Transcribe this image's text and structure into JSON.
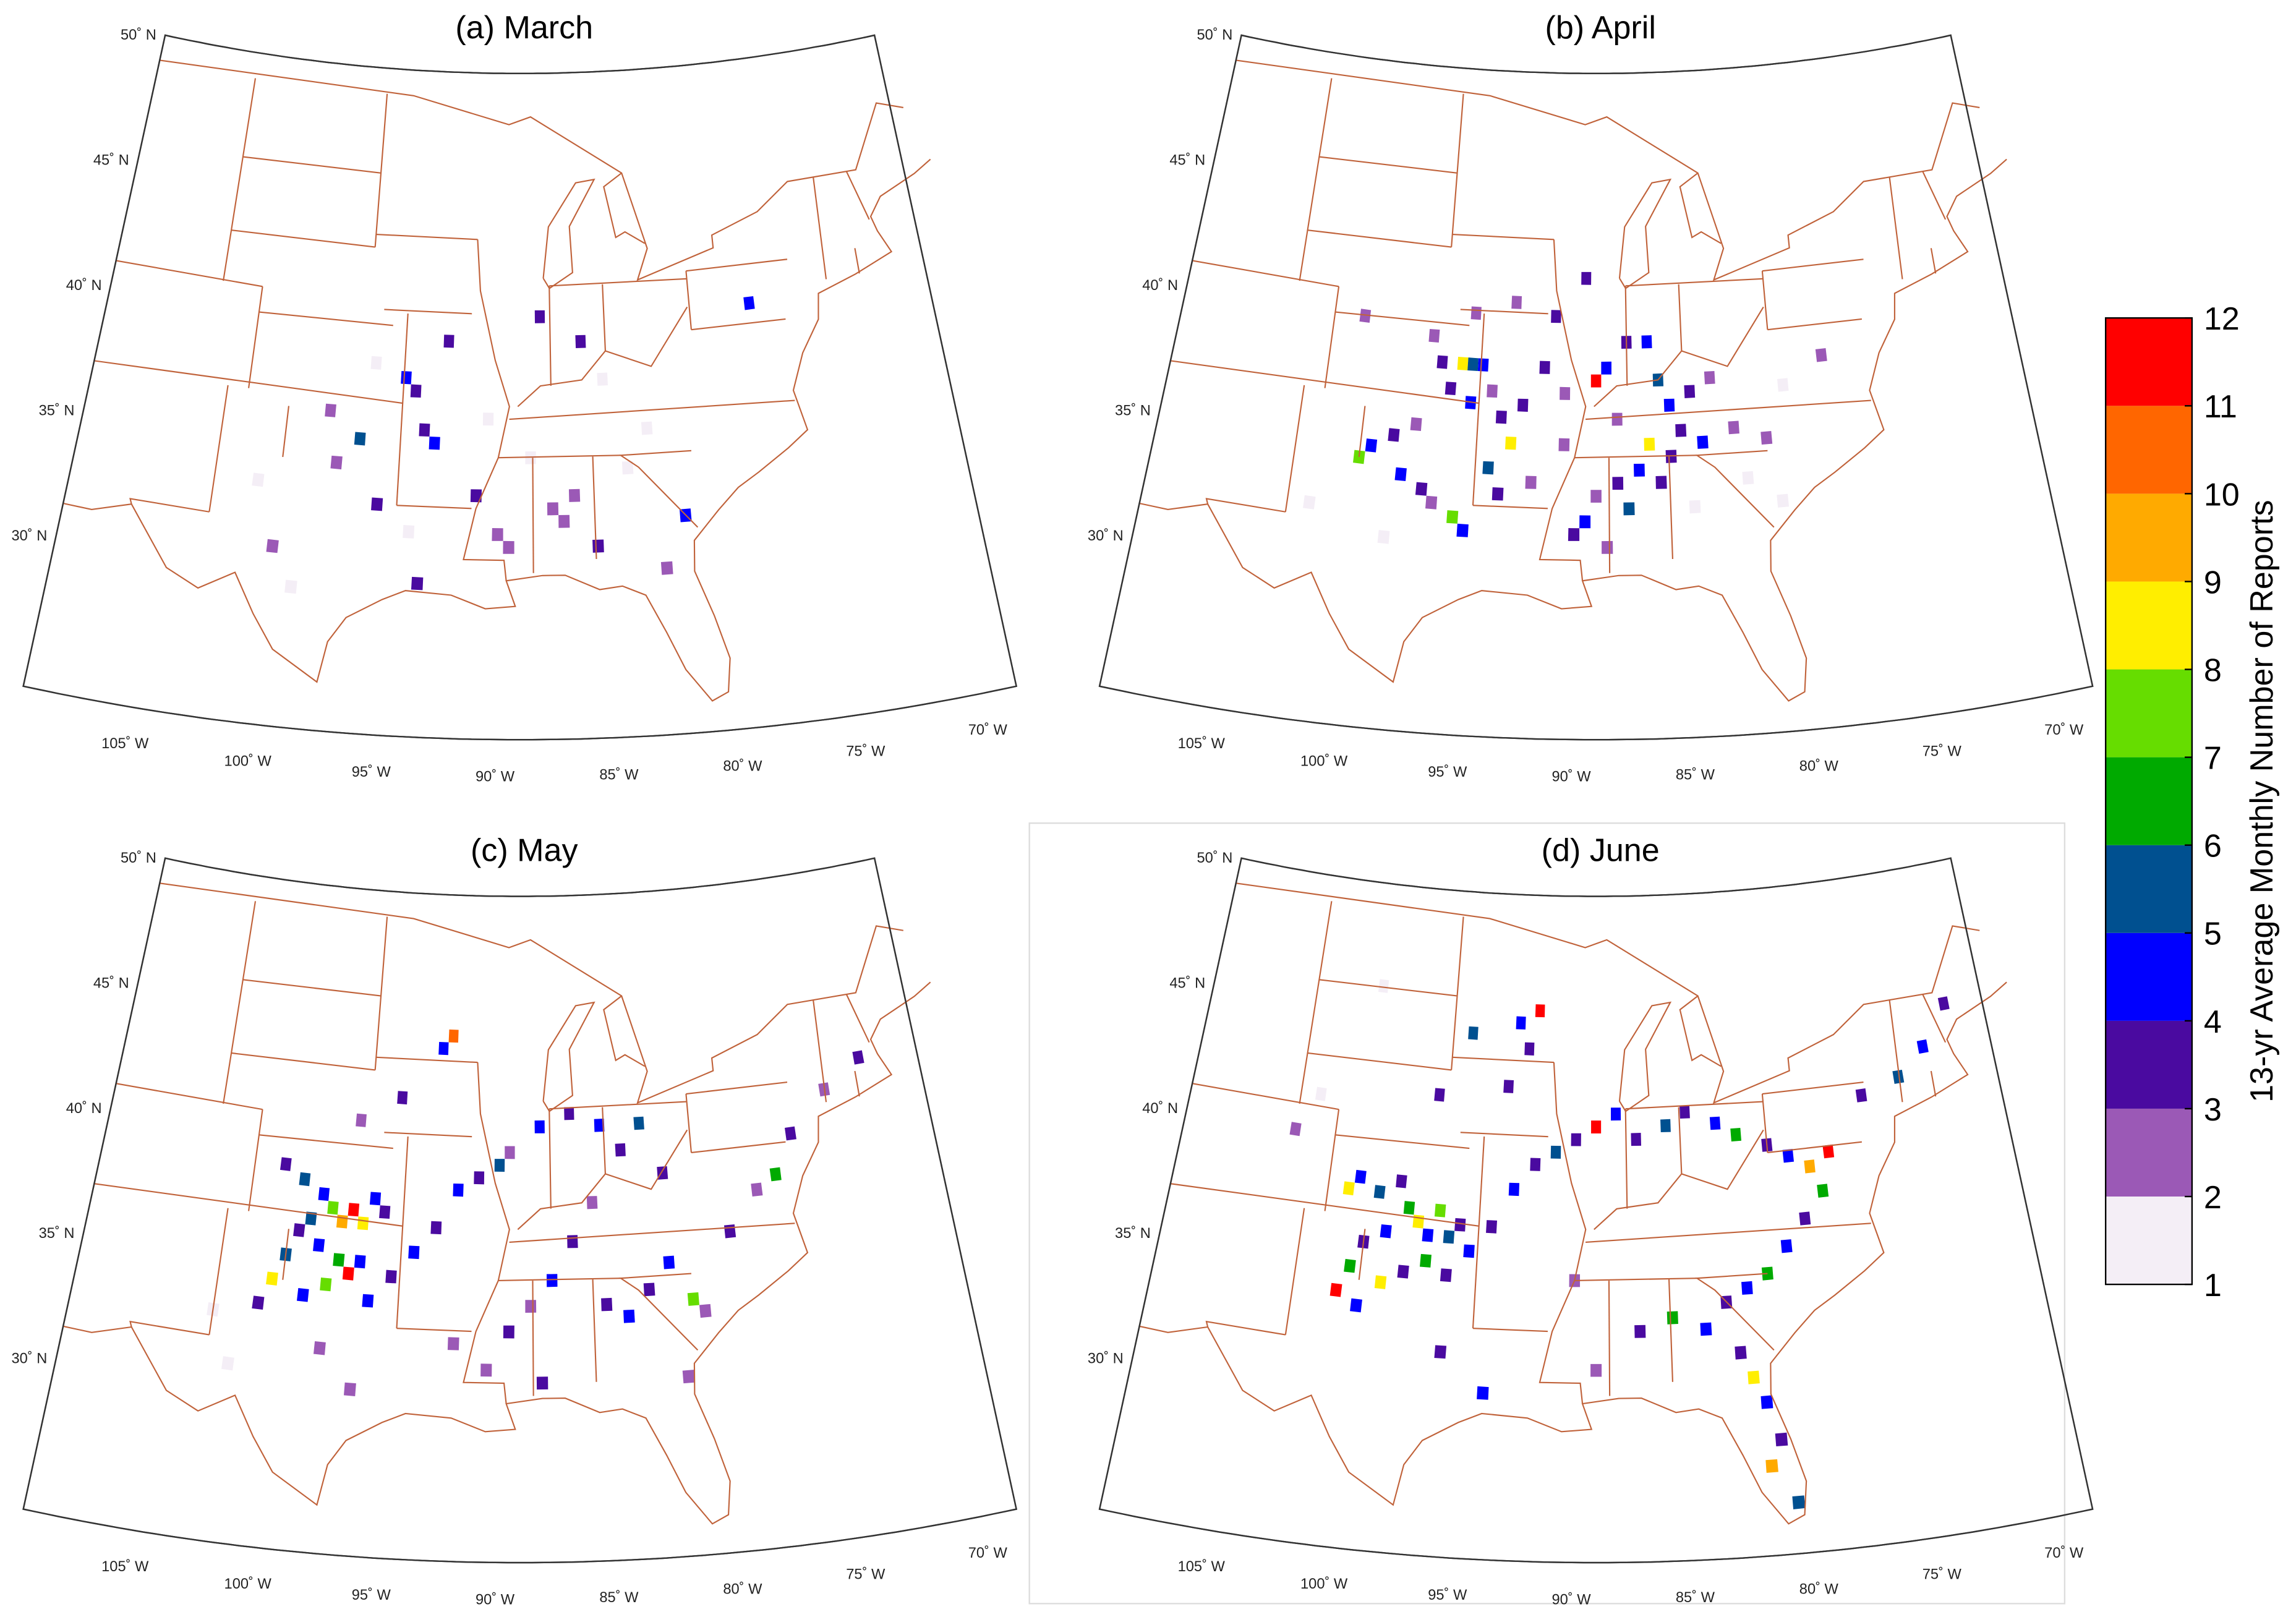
{
  "panels": [
    {
      "title": "(a) March",
      "cells": [
        [
          -94.5,
          38.0,
          4.5
        ],
        [
          -94.0,
          37.5,
          3.5
        ],
        [
          -93.5,
          36.0,
          3.5
        ],
        [
          -96.5,
          35.5,
          5.5
        ],
        [
          -93.0,
          35.5,
          4.5
        ],
        [
          -92.5,
          39.5,
          3.5
        ],
        [
          -88.0,
          40.5,
          3.5
        ],
        [
          -86.0,
          39.5,
          3.5
        ],
        [
          -77.5,
          40.5,
          4.5
        ],
        [
          -91.0,
          33.5,
          3.5
        ],
        [
          -90.0,
          32.0,
          2.5
        ],
        [
          -89.5,
          31.5,
          2.5
        ],
        [
          -87.5,
          33.0,
          2.5
        ],
        [
          -87.0,
          32.5,
          2.5
        ],
        [
          -86.5,
          33.5,
          2.5
        ],
        [
          -85.5,
          31.5,
          3.5
        ],
        [
          -81.5,
          32.5,
          4.5
        ],
        [
          -82.5,
          30.5,
          2.5
        ],
        [
          -98.0,
          36.5,
          2.5
        ],
        [
          -97.5,
          34.5,
          2.5
        ],
        [
          -95.5,
          33.0,
          3.5
        ],
        [
          -100.0,
          31.0,
          2.5
        ],
        [
          -93.5,
          30.0,
          3.5
        ],
        [
          -84.0,
          34.5,
          1.5
        ],
        [
          -90.5,
          36.5,
          1.5
        ],
        [
          -96.0,
          38.5,
          1.5
        ],
        [
          -101.0,
          33.5,
          1.5
        ],
        [
          -88.5,
          35.0,
          1.5
        ],
        [
          -83.0,
          36.0,
          1.5
        ],
        [
          -99.0,
          29.5,
          1.5
        ],
        [
          -85.0,
          38.0,
          1.5
        ],
        [
          -94.0,
          32.0,
          1.5
        ]
      ]
    },
    {
      "title": "(b) April",
      "cells": [
        [
          -96.5,
          38.5,
          3.5
        ],
        [
          -95.5,
          38.5,
          8.5
        ],
        [
          -95.0,
          38.5,
          5.5
        ],
        [
          -94.5,
          38.5,
          4.5
        ],
        [
          -96.0,
          37.5,
          3.5
        ],
        [
          -95.0,
          37.0,
          4.5
        ],
        [
          -94.0,
          37.5,
          2.5
        ],
        [
          -93.5,
          36.5,
          3.5
        ],
        [
          -97.5,
          36.0,
          2.5
        ],
        [
          -98.5,
          35.5,
          3.5
        ],
        [
          -99.5,
          35.0,
          4.5
        ],
        [
          -100.0,
          34.5,
          7.5
        ],
        [
          -98.0,
          34.0,
          4.5
        ],
        [
          -97.0,
          33.5,
          3.5
        ],
        [
          -96.5,
          33.0,
          2.5
        ],
        [
          -95.5,
          32.5,
          7.5
        ],
        [
          -95.0,
          32.0,
          4.5
        ],
        [
          -94.0,
          34.5,
          5.5
        ],
        [
          -93.0,
          35.5,
          8.5
        ],
        [
          -92.5,
          37.0,
          3.5
        ],
        [
          -91.5,
          38.5,
          3.5
        ],
        [
          -90.5,
          37.5,
          2.5
        ],
        [
          -89.0,
          38.0,
          11.5
        ],
        [
          -88.5,
          38.5,
          4.5
        ],
        [
          -87.5,
          39.5,
          3.5
        ],
        [
          -86.5,
          39.5,
          4.5
        ],
        [
          -86.0,
          38.0,
          5.5
        ],
        [
          -85.5,
          37.0,
          4.5
        ],
        [
          -84.5,
          37.5,
          3.5
        ],
        [
          -83.5,
          38.0,
          2.5
        ],
        [
          -85.0,
          36.0,
          3.5
        ],
        [
          -86.5,
          35.5,
          8.5
        ],
        [
          -87.0,
          34.5,
          4.5
        ],
        [
          -86.0,
          34.0,
          3.5
        ],
        [
          -88.0,
          34.0,
          3.5
        ],
        [
          -89.0,
          33.5,
          2.5
        ],
        [
          -89.5,
          32.5,
          4.5
        ],
        [
          -90.0,
          32.0,
          3.5
        ],
        [
          -88.5,
          31.5,
          2.5
        ],
        [
          -87.5,
          33.0,
          5.5
        ],
        [
          -85.5,
          35.0,
          3.5
        ],
        [
          -84.0,
          35.5,
          4.5
        ],
        [
          -82.5,
          36.0,
          2.5
        ],
        [
          -81.0,
          35.5,
          2.5
        ],
        [
          -80.0,
          37.5,
          1.5
        ],
        [
          -78.0,
          38.5,
          2.5
        ],
        [
          -80.5,
          33.0,
          1.5
        ],
        [
          -91.0,
          40.5,
          3.5
        ],
        [
          -89.5,
          42.0,
          3.5
        ],
        [
          -93.0,
          41.0,
          2.5
        ],
        [
          -95.0,
          40.5,
          2.5
        ],
        [
          -100.5,
          40.0,
          2.5
        ],
        [
          -97.0,
          39.5,
          2.5
        ],
        [
          -92.0,
          34.0,
          2.5
        ],
        [
          -90.5,
          35.5,
          2.5
        ],
        [
          -93.5,
          33.5,
          3.5
        ],
        [
          -102.0,
          32.5,
          1.5
        ],
        [
          -98.5,
          31.5,
          1.5
        ],
        [
          -88.0,
          36.5,
          2.5
        ],
        [
          -84.5,
          33.0,
          1.5
        ],
        [
          -82.0,
          34.0,
          1.5
        ]
      ]
    },
    {
      "title": "(c) May",
      "cells": [
        [
          -100.5,
          39.0,
          3.5
        ],
        [
          -99.5,
          38.5,
          5.5
        ],
        [
          -98.5,
          38.0,
          4.5
        ],
        [
          -98.0,
          37.5,
          7.5
        ],
        [
          -97.5,
          37.0,
          9.5
        ],
        [
          -97.0,
          37.5,
          11.5
        ],
        [
          -96.5,
          37.0,
          8.5
        ],
        [
          -96.0,
          38.0,
          4.5
        ],
        [
          -95.5,
          37.5,
          3.5
        ],
        [
          -99.0,
          37.0,
          5.5
        ],
        [
          -99.5,
          36.5,
          3.5
        ],
        [
          -98.5,
          36.0,
          4.5
        ],
        [
          -97.5,
          35.5,
          6.5
        ],
        [
          -97.0,
          35.0,
          11.5
        ],
        [
          -96.5,
          35.5,
          4.5
        ],
        [
          -98.0,
          34.5,
          7.5
        ],
        [
          -99.0,
          34.0,
          4.5
        ],
        [
          -100.0,
          35.5,
          5.5
        ],
        [
          -100.5,
          34.5,
          8.5
        ],
        [
          -101.0,
          33.5,
          3.5
        ],
        [
          -96.0,
          34.0,
          4.5
        ],
        [
          -95.0,
          35.0,
          3.5
        ],
        [
          -94.0,
          36.0,
          4.5
        ],
        [
          -93.0,
          37.0,
          3.5
        ],
        [
          -92.0,
          38.5,
          4.5
        ],
        [
          -91.0,
          39.0,
          3.5
        ],
        [
          -90.0,
          39.5,
          5.5
        ],
        [
          -89.5,
          40.0,
          2.5
        ],
        [
          -88.0,
          41.0,
          4.5
        ],
        [
          -86.5,
          41.5,
          3.5
        ],
        [
          -85.0,
          41.0,
          4.5
        ],
        [
          -84.0,
          40.0,
          3.5
        ],
        [
          -83.0,
          41.0,
          5.5
        ],
        [
          -82.0,
          39.0,
          3.5
        ],
        [
          -85.5,
          38.0,
          2.5
        ],
        [
          -86.5,
          36.5,
          3.5
        ],
        [
          -87.5,
          35.0,
          4.5
        ],
        [
          -88.5,
          34.0,
          2.5
        ],
        [
          -89.5,
          33.0,
          3.5
        ],
        [
          -90.5,
          31.5,
          2.5
        ],
        [
          -85.0,
          34.0,
          3.5
        ],
        [
          -84.0,
          33.5,
          4.5
        ],
        [
          -83.0,
          34.5,
          3.5
        ],
        [
          -82.0,
          35.5,
          4.5
        ],
        [
          -81.0,
          34.0,
          7.5
        ],
        [
          -80.5,
          33.5,
          2.5
        ],
        [
          -79.0,
          36.5,
          3.5
        ],
        [
          -77.5,
          38.0,
          2.5
        ],
        [
          -76.5,
          38.5,
          6.5
        ],
        [
          -75.5,
          40.0,
          3.5
        ],
        [
          -73.5,
          41.5,
          2.5
        ],
        [
          -71.5,
          42.5,
          3.5
        ],
        [
          -92.5,
          44.5,
          10.5
        ],
        [
          -93.0,
          44.0,
          4.5
        ],
        [
          -95.0,
          42.0,
          3.5
        ],
        [
          -97.0,
          41.0,
          2.5
        ],
        [
          -98.0,
          32.0,
          2.5
        ],
        [
          -102.0,
          31.0,
          1.5
        ],
        [
          -103.0,
          33.0,
          1.5
        ],
        [
          -96.5,
          30.5,
          2.5
        ],
        [
          -92.0,
          32.5,
          2.5
        ],
        [
          -88.0,
          31.0,
          3.5
        ],
        [
          -81.5,
          31.0,
          2.5
        ]
      ]
    },
    {
      "title": "(d) June",
      "cells": [
        [
          -101.0,
          38.0,
          8.5
        ],
        [
          -100.5,
          38.5,
          4.5
        ],
        [
          -99.5,
          38.0,
          5.5
        ],
        [
          -98.5,
          38.5,
          3.5
        ],
        [
          -98.0,
          37.5,
          6.5
        ],
        [
          -97.5,
          37.0,
          8.5
        ],
        [
          -97.0,
          36.5,
          4.5
        ],
        [
          -96.5,
          37.5,
          7.5
        ],
        [
          -96.0,
          36.5,
          5.5
        ],
        [
          -95.5,
          37.0,
          3.5
        ],
        [
          -99.0,
          36.5,
          4.5
        ],
        [
          -100.0,
          36.0,
          3.5
        ],
        [
          -100.5,
          35.0,
          6.5
        ],
        [
          -101.0,
          34.0,
          11.5
        ],
        [
          -100.0,
          33.5,
          4.5
        ],
        [
          -99.0,
          34.5,
          8.5
        ],
        [
          -98.0,
          35.0,
          3.5
        ],
        [
          -97.0,
          35.5,
          6.5
        ],
        [
          -96.0,
          35.0,
          3.5
        ],
        [
          -95.0,
          36.0,
          4.5
        ],
        [
          -94.0,
          37.0,
          3.5
        ],
        [
          -93.0,
          38.5,
          4.5
        ],
        [
          -92.0,
          39.5,
          3.5
        ],
        [
          -91.0,
          40.0,
          5.5
        ],
        [
          -90.0,
          40.5,
          3.5
        ],
        [
          -89.0,
          41.0,
          11.5
        ],
        [
          -88.0,
          41.5,
          4.5
        ],
        [
          -87.0,
          40.5,
          3.5
        ],
        [
          -85.5,
          41.0,
          5.5
        ],
        [
          -84.5,
          41.5,
          3.5
        ],
        [
          -83.0,
          41.0,
          4.5
        ],
        [
          -82.0,
          40.5,
          6.5
        ],
        [
          -80.5,
          40.0,
          3.5
        ],
        [
          -79.5,
          39.5,
          4.5
        ],
        [
          -78.5,
          39.0,
          9.5
        ],
        [
          -77.5,
          39.5,
          11.5
        ],
        [
          -78.0,
          38.0,
          6.5
        ],
        [
          -79.0,
          37.0,
          3.5
        ],
        [
          -80.0,
          36.0,
          4.5
        ],
        [
          -81.0,
          35.0,
          6.5
        ],
        [
          -82.0,
          34.5,
          4.5
        ],
        [
          -83.0,
          34.0,
          3.5
        ],
        [
          -84.0,
          33.0,
          4.5
        ],
        [
          -82.5,
          32.0,
          3.5
        ],
        [
          -82.0,
          31.0,
          8.5
        ],
        [
          -81.5,
          30.0,
          4.5
        ],
        [
          -81.0,
          28.5,
          3.5
        ],
        [
          -81.5,
          27.5,
          9.5
        ],
        [
          -80.5,
          26.0,
          5.5
        ],
        [
          -85.5,
          33.5,
          6.5
        ],
        [
          -87.0,
          33.0,
          3.5
        ],
        [
          -89.0,
          31.5,
          2.5
        ],
        [
          -93.0,
          45.0,
          4.5
        ],
        [
          -92.0,
          45.5,
          11.5
        ],
        [
          -92.5,
          44.0,
          3.5
        ],
        [
          -95.5,
          44.5,
          5.5
        ],
        [
          -97.0,
          42.0,
          3.5
        ],
        [
          -93.5,
          42.5,
          3.5
        ],
        [
          -75.5,
          41.5,
          3.5
        ],
        [
          -73.5,
          42.0,
          5.5
        ],
        [
          -72.0,
          43.0,
          4.5
        ],
        [
          -70.5,
          44.5,
          3.5
        ],
        [
          -104.0,
          40.0,
          2.5
        ],
        [
          -103.0,
          41.5,
          1.5
        ],
        [
          -100.5,
          46.0,
          1.5
        ],
        [
          -96.0,
          32.0,
          3.5
        ],
        [
          -94.0,
          30.5,
          4.5
        ],
        [
          -90.0,
          35.0,
          2.5
        ]
      ]
    }
  ],
  "lat_ticks": [
    {
      "value": 50,
      "label": "50˚ N"
    },
    {
      "value": 45,
      "label": "45˚ N"
    },
    {
      "value": 40,
      "label": "40˚ N"
    },
    {
      "value": 35,
      "label": "35˚ N"
    },
    {
      "value": 30,
      "label": "30˚ N"
    }
  ],
  "lon_ticks": [
    {
      "value": -105,
      "label": "105˚ W"
    },
    {
      "value": -100,
      "label": "100˚ W"
    },
    {
      "value": -95,
      "label": "95˚ W"
    },
    {
      "value": -90,
      "label": "90˚ W"
    },
    {
      "value": -85,
      "label": "85˚ W"
    },
    {
      "value": -80,
      "label": "80˚ W"
    },
    {
      "value": -75,
      "label": "75˚ W"
    },
    {
      "value": -70,
      "label": "70˚ W"
    }
  ],
  "colorbar": {
    "label": "13-yr Average Monthly Number of Reports",
    "ticks": [
      1,
      2,
      3,
      4,
      5,
      6,
      7,
      8,
      9,
      10,
      11,
      12
    ],
    "colors": [
      "#f4eef6",
      "#9b59b6",
      "#4a0aa0",
      "#0000ff",
      "#005090",
      "#00aa00",
      "#66dd00",
      "#ffee00",
      "#ffaa00",
      "#ff6600",
      "#ff0000"
    ]
  }
}
